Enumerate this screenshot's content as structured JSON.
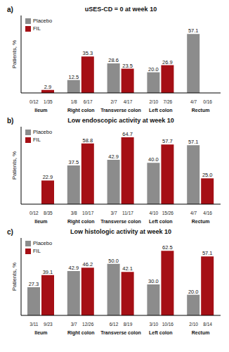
{
  "chart_data": [
    {
      "type": "bar",
      "label": "a)",
      "title": "uSES-CD = 0 at week 10",
      "y_label": "Patients, %",
      "categories": [
        "Ileum",
        "Right colon",
        "Transverse colon",
        "Left colon",
        "Rectum"
      ],
      "series": [
        {
          "name": "Placebo",
          "color": "#8c8c8c",
          "values": [
            0,
            12.5,
            28.6,
            20.0,
            57.1
          ],
          "value_labels": [
            "0",
            "12.5",
            "28.6",
            "20.0",
            "57.1"
          ],
          "fractions": [
            "0/12",
            "1/8",
            "2/7",
            "2/10",
            "4/7"
          ]
        },
        {
          "name": "FIL",
          "color": "#a50f15",
          "values": [
            2.9,
            35.3,
            23.5,
            26.9,
            0
          ],
          "value_labels": [
            "2.9",
            "35.3",
            "23.5",
            "26.9",
            "0"
          ],
          "fractions": [
            "1/35",
            "6/17",
            "4/17",
            "7/26",
            "0/16"
          ]
        }
      ],
      "ylim": [
        0,
        75
      ],
      "legend": "upper left",
      "data_labels": true,
      "tick_labels": "x"
    },
    {
      "type": "bar",
      "label": "b)",
      "title": "Low endoscopic activity at week 10",
      "y_label": "Patients, %",
      "categories": [
        "Ileum",
        "Right colon",
        "Transverse colon",
        "Left colon",
        "Rectum"
      ],
      "series": [
        {
          "name": "Placebo",
          "color": "#8c8c8c",
          "values": [
            0,
            37.5,
            42.9,
            40.0,
            57.1
          ],
          "value_labels": [
            "0",
            "37.5",
            "42.9",
            "40.0",
            "57.1"
          ],
          "fractions": [
            "0/12",
            "3/8",
            "3/7",
            "4/10",
            "4/7"
          ]
        },
        {
          "name": "FIL",
          "color": "#a50f15",
          "values": [
            22.9,
            58.8,
            64.7,
            57.7,
            25.0
          ],
          "value_labels": [
            "22.9",
            "58.8",
            "64.7",
            "57.7",
            "25.0"
          ],
          "fractions": [
            "8/35",
            "10/17",
            "11/17",
            "15/26",
            "4/16"
          ]
        }
      ],
      "ylim": [
        0,
        75
      ],
      "legend": "upper left",
      "data_labels": true,
      "tick_labels": "x"
    },
    {
      "type": "bar",
      "label": "c)",
      "title": "Low histologic activity at week 10",
      "y_label": "Patients, %",
      "categories": [
        "Ileum",
        "Right colon",
        "Transverse colon",
        "Left colon",
        "Rectum"
      ],
      "series": [
        {
          "name": "Placebo",
          "color": "#8c8c8c",
          "values": [
            27.3,
            42.9,
            50.0,
            30.0,
            20.0
          ],
          "value_labels": [
            "27.3",
            "42.9",
            "50.0",
            "30.0",
            "20.0"
          ],
          "fractions": [
            "3/11",
            "3/7",
            "6/12",
            "3/10",
            "2/10"
          ]
        },
        {
          "name": "FIL",
          "color": "#a50f15",
          "values": [
            39.1,
            46.2,
            42.1,
            62.5,
            57.1
          ],
          "value_labels": [
            "39.1",
            "46.2",
            "42.1",
            "62.5",
            "57.1"
          ],
          "fractions": [
            "9/23",
            "12/26",
            "8/19",
            "10/16",
            "8/14"
          ]
        }
      ],
      "ylim": [
        0,
        75
      ],
      "legend": "upper left",
      "data_labels": true,
      "tick_labels": "x"
    }
  ]
}
